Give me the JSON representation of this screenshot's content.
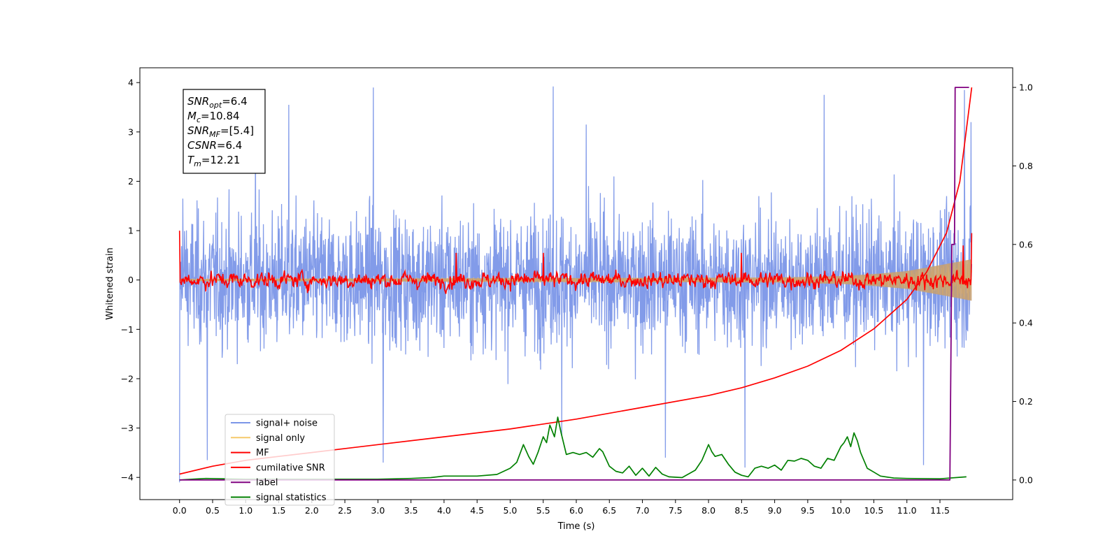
{
  "chart_data": {
    "type": "line",
    "xlabel": "Time (s)",
    "ylabel": "Whitened strain",
    "xlim": [
      -0.6,
      12.6
    ],
    "ylim": [
      -4.45,
      4.3
    ],
    "y2lim": [
      -0.05,
      1.05
    ],
    "x_ticks": [
      0.0,
      0.5,
      1.0,
      1.5,
      2.0,
      2.5,
      3.0,
      3.5,
      4.0,
      4.5,
      5.0,
      5.5,
      6.0,
      6.5,
      7.0,
      7.5,
      8.0,
      8.5,
      9.0,
      9.5,
      10.0,
      10.5,
      11.0,
      11.5
    ],
    "x_tick_labels": [
      "0.0",
      "0.5",
      "1.0",
      "1.5",
      "2.0",
      "2.5",
      "3.0",
      "3.5",
      "4.0",
      "4.5",
      "5.0",
      "5.5",
      "6.0",
      "6.5",
      "7.0",
      "7.5",
      "8.0",
      "8.5",
      "9.0",
      "9.5",
      "10.0",
      "10.5",
      "11.0",
      "11.5"
    ],
    "y_ticks": [
      4,
      3,
      2,
      1,
      0,
      -1,
      -2,
      -3,
      -4
    ],
    "y_tick_labels": [
      "4",
      "3",
      "2",
      "1",
      "0",
      "−1",
      "−2",
      "−3",
      "−4"
    ],
    "y2_ticks": [
      1.0,
      0.8,
      0.6,
      0.4,
      0.2,
      0.0
    ],
    "y2_tick_labels": [
      "1.0",
      "0.8",
      "0.6",
      "0.4",
      "0.2",
      "0.0"
    ],
    "legend_position": "lower-left",
    "info_box": {
      "position": "upper-left",
      "lines": [
        {
          "base": "SNR",
          "sub": "opt",
          "rest": "=6.4"
        },
        {
          "base": "M",
          "sub": "c",
          "rest": "=10.84"
        },
        {
          "base": "SNR",
          "sub": "MF",
          "rest": "=[5.4]"
        },
        {
          "base": "CSNR",
          "sub": "",
          "rest": "=6.4"
        },
        {
          "base": "T",
          "sub": "m",
          "rest": "=12.21"
        }
      ]
    },
    "series": [
      {
        "name": "signal+ noise",
        "color": "#7b96e8",
        "axis": "left",
        "style": "dense-noise",
        "x_range": [
          0.0,
          11.98
        ],
        "typical_range": [
          -1.6,
          1.6
        ],
        "extremes": [
          {
            "x": 0.0,
            "y": -4.1
          },
          {
            "x": 0.05,
            "y": 1.65
          },
          {
            "x": 0.42,
            "y": -3.65
          },
          {
            "x": 1.15,
            "y": 3.0
          },
          {
            "x": 1.65,
            "y": 3.55
          },
          {
            "x": 2.93,
            "y": 3.9
          },
          {
            "x": 3.08,
            "y": -3.7
          },
          {
            "x": 5.65,
            "y": 3.92
          },
          {
            "x": 5.78,
            "y": -3.15
          },
          {
            "x": 6.15,
            "y": 3.15
          },
          {
            "x": 7.35,
            "y": -3.6
          },
          {
            "x": 8.55,
            "y": -3.8
          },
          {
            "x": 9.75,
            "y": 3.75
          },
          {
            "x": 11.25,
            "y": -3.75
          },
          {
            "x": 11.87,
            "y": 3.85
          },
          {
            "x": 11.97,
            "y": 3.2
          }
        ]
      },
      {
        "name": "signal only",
        "color": "#f5c96b",
        "axis": "left",
        "style": "chirp-band",
        "x": [
          0.0,
          9.0,
          10.0,
          10.5,
          11.0,
          11.5,
          11.98
        ],
        "amplitude": [
          0.02,
          0.05,
          0.08,
          0.12,
          0.18,
          0.3,
          0.42
        ]
      },
      {
        "name": "MF",
        "color": "#ff0000",
        "axis": "left",
        "style": "noisy-line",
        "x_range": [
          0.0,
          11.98
        ],
        "typical_range": [
          -0.3,
          0.4
        ],
        "extremes": [
          {
            "x": 0.0,
            "y": 1.0
          },
          {
            "x": 0.03,
            "y": -0.1
          },
          {
            "x": 4.18,
            "y": 0.55
          },
          {
            "x": 5.5,
            "y": 0.55
          },
          {
            "x": 8.5,
            "y": 0.55
          },
          {
            "x": 11.85,
            "y": 0.7
          },
          {
            "x": 11.98,
            "y": 0.95
          }
        ]
      },
      {
        "name": "cumilative SNR",
        "color": "#ff0000",
        "axis": "right",
        "x": [
          0.0,
          0.5,
          1.0,
          1.5,
          2.0,
          3.0,
          4.0,
          5.0,
          6.0,
          7.0,
          8.0,
          8.5,
          9.0,
          9.5,
          10.0,
          10.5,
          11.0,
          11.3,
          11.6,
          11.8,
          11.98
        ],
        "values": [
          0.015,
          0.035,
          0.05,
          0.06,
          0.07,
          0.09,
          0.11,
          0.13,
          0.155,
          0.185,
          0.215,
          0.235,
          0.26,
          0.29,
          0.33,
          0.385,
          0.46,
          0.53,
          0.63,
          0.76,
          1.0
        ]
      },
      {
        "name": "label",
        "color": "#800080",
        "axis": "right",
        "x": [
          0.0,
          11.65,
          11.68,
          11.72,
          11.73,
          11.94
        ],
        "values": [
          0.0,
          0.0,
          0.6,
          0.6,
          1.0,
          1.0
        ]
      },
      {
        "name": "signal statistics",
        "color": "#008000",
        "axis": "right",
        "x": [
          0.0,
          0.3,
          0.4,
          1.0,
          2.0,
          3.0,
          3.5,
          3.8,
          4.0,
          4.2,
          4.5,
          4.8,
          5.0,
          5.1,
          5.2,
          5.28,
          5.35,
          5.42,
          5.5,
          5.55,
          5.6,
          5.67,
          5.72,
          5.77,
          5.85,
          5.95,
          6.05,
          6.15,
          6.25,
          6.35,
          6.4,
          6.5,
          6.6,
          6.7,
          6.8,
          6.9,
          7.0,
          7.1,
          7.2,
          7.3,
          7.4,
          7.6,
          7.8,
          7.9,
          8.0,
          8.05,
          8.1,
          8.2,
          8.3,
          8.4,
          8.5,
          8.6,
          8.7,
          8.8,
          8.9,
          9.0,
          9.1,
          9.2,
          9.3,
          9.4,
          9.5,
          9.6,
          9.7,
          9.8,
          9.9,
          10.0,
          10.05,
          10.1,
          10.15,
          10.2,
          10.25,
          10.3,
          10.4,
          10.5,
          10.6,
          10.8,
          11.0,
          11.5,
          11.9
        ],
        "values": [
          0.0,
          0.003,
          0.004,
          0.002,
          0.002,
          0.002,
          0.004,
          0.006,
          0.01,
          0.01,
          0.01,
          0.014,
          0.03,
          0.045,
          0.09,
          0.06,
          0.04,
          0.07,
          0.11,
          0.095,
          0.14,
          0.11,
          0.16,
          0.12,
          0.065,
          0.07,
          0.065,
          0.07,
          0.058,
          0.08,
          0.072,
          0.035,
          0.022,
          0.018,
          0.035,
          0.012,
          0.03,
          0.01,
          0.032,
          0.015,
          0.008,
          0.006,
          0.025,
          0.05,
          0.09,
          0.072,
          0.06,
          0.065,
          0.04,
          0.02,
          0.012,
          0.008,
          0.03,
          0.035,
          0.03,
          0.038,
          0.025,
          0.05,
          0.048,
          0.055,
          0.05,
          0.035,
          0.03,
          0.055,
          0.05,
          0.085,
          0.095,
          0.11,
          0.085,
          0.12,
          0.1,
          0.07,
          0.03,
          0.02,
          0.01,
          0.005,
          0.004,
          0.003,
          0.008
        ]
      }
    ]
  }
}
